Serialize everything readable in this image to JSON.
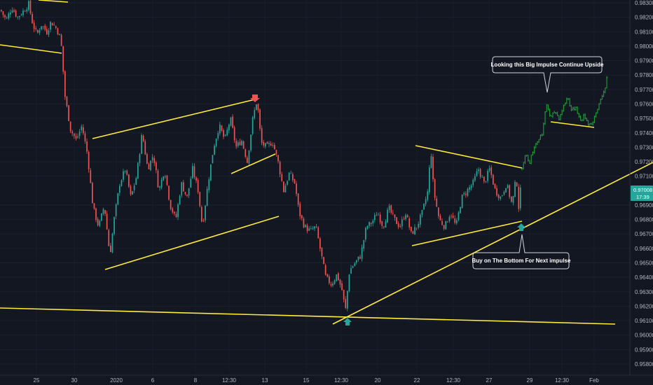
{
  "chart_data": {
    "type": "candlestick",
    "y_axis_ticks": [
      "0.98300",
      "0.98200",
      "0.98100",
      "0.98000",
      "0.97900",
      "0.97800",
      "0.97700",
      "0.97600",
      "0.97500",
      "0.97400",
      "0.97300",
      "0.97200",
      "0.97100",
      "0.96900",
      "0.96800",
      "0.96700",
      "0.96600",
      "0.96500",
      "0.96400",
      "0.96300",
      "0.96200",
      "0.96100",
      "0.96000",
      "0.95900",
      "0.95800"
    ],
    "x_axis_ticks": [
      "25",
      "30",
      "2020",
      "6",
      "8",
      "12:30",
      "13",
      "15",
      "12:30",
      "20",
      "22",
      "12:30",
      "27",
      "29",
      "12:30",
      "Feb"
    ],
    "ylim": [
      0.95755,
      0.98315
    ],
    "current_price": "0.97008",
    "countdown": "17:39",
    "colors": {
      "background": "#131722",
      "up": "#26a69a",
      "down": "#ef5350",
      "projection": "#1e9e3a",
      "trendline": "#ffeb3b",
      "price_badge": "#26a69a"
    },
    "grid": "on",
    "annotations": [
      {
        "text": "Looking this Big Impulse Continue Upside"
      },
      {
        "text": "Buy on The  Bottom For Next impulse"
      }
    ],
    "path": [
      [
        0,
        0.9825
      ],
      [
        8,
        0.9818
      ],
      [
        16,
        0.9827
      ],
      [
        24,
        0.982
      ],
      [
        32,
        0.9824
      ],
      [
        40,
        0.9829
      ],
      [
        46,
        0.9815
      ],
      [
        52,
        0.9808
      ],
      [
        58,
        0.9815
      ],
      [
        66,
        0.981
      ],
      [
        72,
        0.9817
      ],
      [
        80,
        0.9812
      ],
      [
        86,
        0.9805
      ],
      [
        92,
        0.9765
      ],
      [
        100,
        0.9742
      ],
      [
        108,
        0.9735
      ],
      [
        116,
        0.9745
      ],
      [
        124,
        0.9725
      ],
      [
        132,
        0.9688
      ],
      [
        140,
        0.9675
      ],
      [
        148,
        0.969
      ],
      [
        156,
        0.9655
      ],
      [
        162,
        0.968
      ],
      [
        170,
        0.9705
      ],
      [
        178,
        0.9715
      ],
      [
        186,
        0.9695
      ],
      [
        194,
        0.971
      ],
      [
        202,
        0.974
      ],
      [
        210,
        0.9715
      ],
      [
        218,
        0.9725
      ],
      [
        226,
        0.97
      ],
      [
        234,
        0.9715
      ],
      [
        242,
        0.969
      ],
      [
        250,
        0.968
      ],
      [
        258,
        0.9705
      ],
      [
        266,
        0.9695
      ],
      [
        274,
        0.9715
      ],
      [
        282,
        0.97
      ],
      [
        288,
        0.9675
      ],
      [
        296,
        0.9705
      ],
      [
        304,
        0.973
      ],
      [
        312,
        0.9745
      ],
      [
        320,
        0.9735
      ],
      [
        328,
        0.975
      ],
      [
        336,
        0.973
      ],
      [
        344,
        0.9735
      ],
      [
        352,
        0.972
      ],
      [
        360,
        0.975
      ],
      [
        366,
        0.9763
      ],
      [
        372,
        0.9733
      ],
      [
        380,
        0.973
      ],
      [
        388,
        0.9734
      ],
      [
        396,
        0.972
      ],
      [
        404,
        0.97
      ],
      [
        412,
        0.9712
      ],
      [
        420,
        0.9705
      ],
      [
        426,
        0.9685
      ],
      [
        434,
        0.9675
      ],
      [
        442,
        0.9672
      ],
      [
        450,
        0.9675
      ],
      [
        458,
        0.9655
      ],
      [
        464,
        0.964
      ],
      [
        472,
        0.9635
      ],
      [
        480,
        0.9642
      ],
      [
        488,
        0.963
      ],
      [
        492,
        0.9616
      ],
      [
        498,
        0.9645
      ],
      [
        506,
        0.965
      ],
      [
        514,
        0.9655
      ],
      [
        522,
        0.9675
      ],
      [
        530,
        0.9678
      ],
      [
        538,
        0.9685
      ],
      [
        546,
        0.9675
      ],
      [
        554,
        0.9688
      ],
      [
        562,
        0.968
      ],
      [
        570,
        0.9675
      ],
      [
        578,
        0.9685
      ],
      [
        586,
        0.967
      ],
      [
        594,
        0.9675
      ],
      [
        602,
        0.9685
      ],
      [
        610,
        0.97
      ],
      [
        614,
        0.973
      ],
      [
        618,
        0.97
      ],
      [
        626,
        0.968
      ],
      [
        634,
        0.9675
      ],
      [
        642,
        0.9685
      ],
      [
        650,
        0.9675
      ],
      [
        658,
        0.9695
      ],
      [
        666,
        0.97
      ],
      [
        674,
        0.9705
      ],
      [
        682,
        0.9715
      ],
      [
        690,
        0.9705
      ],
      [
        698,
        0.9715
      ],
      [
        706,
        0.97
      ],
      [
        714,
        0.9695
      ],
      [
        722,
        0.9705
      ],
      [
        730,
        0.969
      ],
      [
        736,
        0.971
      ],
      [
        740,
        0.9685
      ],
      [
        744,
        0.9715
      ]
    ],
    "projection": [
      [
        744,
        0.9715
      ],
      [
        750,
        0.9725
      ],
      [
        756,
        0.972
      ],
      [
        762,
        0.973
      ],
      [
        768,
        0.9735
      ],
      [
        774,
        0.974
      ],
      [
        780,
        0.976
      ],
      [
        786,
        0.975
      ],
      [
        792,
        0.9755
      ],
      [
        798,
        0.975
      ],
      [
        804,
        0.9758
      ],
      [
        810,
        0.9765
      ],
      [
        816,
        0.9755
      ],
      [
        822,
        0.9758
      ],
      [
        828,
        0.9748
      ],
      [
        834,
        0.9752
      ],
      [
        840,
        0.9746
      ],
      [
        846,
        0.9747
      ],
      [
        852,
        0.9755
      ],
      [
        858,
        0.9765
      ],
      [
        864,
        0.977
      ],
      [
        868,
        0.9785
      ]
    ]
  }
}
